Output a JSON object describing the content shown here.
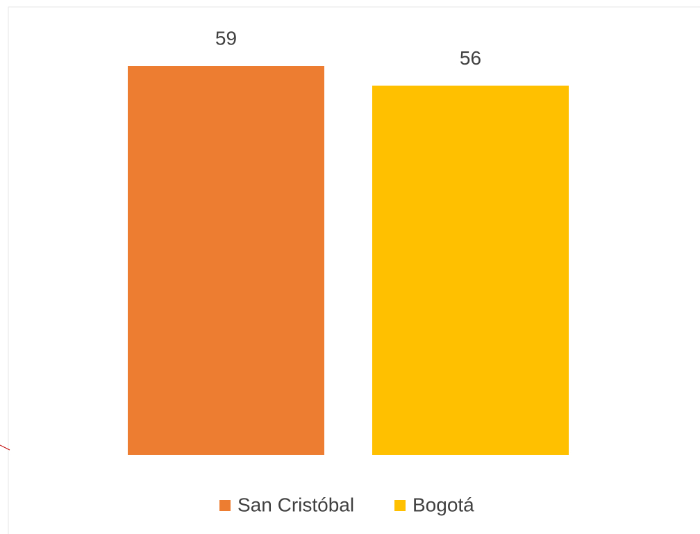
{
  "chart_data": {
    "type": "bar",
    "series": [
      {
        "name": "San Cristóbal",
        "color": "#ed7d31",
        "values": [
          59
        ]
      },
      {
        "name": "Bogotá",
        "color": "#ffc000",
        "values": [
          56
        ]
      }
    ]
  }
}
